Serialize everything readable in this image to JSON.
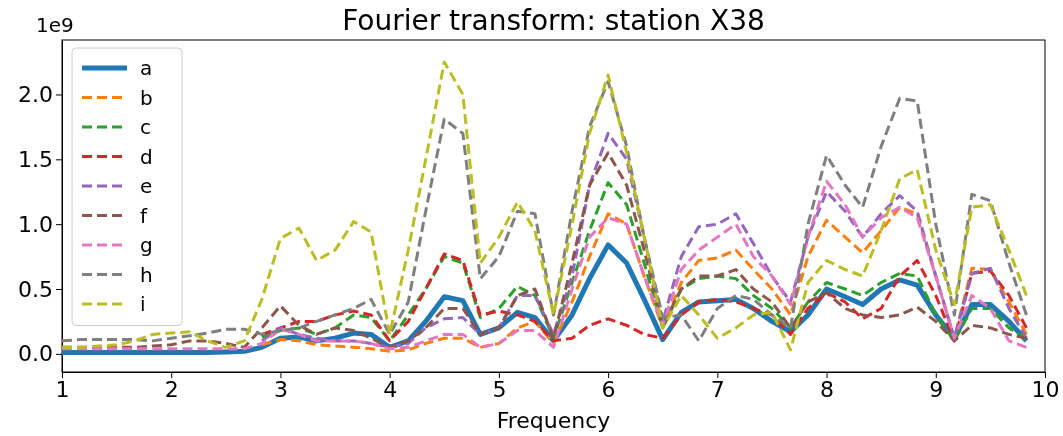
{
  "chart_data": {
    "type": "line",
    "title": "Fourier transform: station X38",
    "xlabel": "Frequency",
    "annotations": [
      "1e9"
    ],
    "x": [
      1,
      1.17,
      1.33,
      1.5,
      1.67,
      1.83,
      2,
      2.17,
      2.33,
      2.5,
      2.67,
      2.83,
      3,
      3.17,
      3.33,
      3.5,
      3.67,
      3.83,
      4,
      4.17,
      4.33,
      4.5,
      4.67,
      4.83,
      5,
      5.17,
      5.33,
      5.5,
      5.67,
      5.83,
      6,
      6.17,
      6.33,
      6.5,
      6.67,
      6.83,
      7,
      7.17,
      7.33,
      7.5,
      7.67,
      7.83,
      8,
      8.17,
      8.33,
      8.5,
      8.67,
      8.83,
      9,
      9.17,
      9.33,
      9.5,
      9.67,
      9.83
    ],
    "xlim": [
      1,
      10
    ],
    "xticks": [
      1,
      2,
      3,
      4,
      5,
      6,
      7,
      8,
      9,
      10
    ],
    "ylim": [
      -0.14,
      2.42
    ],
    "yticks": [
      {
        "value": 0,
        "label": "0.0"
      },
      {
        "value": 0.5,
        "label": "0.5"
      },
      {
        "value": 1,
        "label": "1.0"
      },
      {
        "value": 1.5,
        "label": "1.5"
      },
      {
        "value": 2,
        "label": "2.0"
      }
    ],
    "grid": false,
    "legend": "top left",
    "marker": "none",
    "series": [
      {
        "name": "a",
        "color": "#1f77b4",
        "line_style": "solid",
        "values": [
          0.01,
          0.01,
          0.01,
          0.01,
          0.01,
          0.01,
          0.01,
          0.01,
          0.01,
          0.015,
          0.02,
          0.05,
          0.12,
          0.13,
          0.1,
          0.12,
          0.16,
          0.15,
          0.05,
          0.1,
          0.25,
          0.44,
          0.41,
          0.15,
          0.2,
          0.32,
          0.28,
          0.1,
          0.3,
          0.58,
          0.84,
          0.7,
          0.42,
          0.11,
          0.32,
          0.4,
          0.41,
          0.42,
          0.35,
          0.25,
          0.17,
          0.3,
          0.5,
          0.44,
          0.38,
          0.5,
          0.57,
          0.53,
          0.3,
          0.12,
          0.38,
          0.38,
          0.25,
          0.1
        ]
      },
      {
        "name": "b",
        "color": "#ff7f0e",
        "line_style": "dashed",
        "values": [
          null,
          null,
          null,
          null,
          null,
          null,
          null,
          null,
          null,
          null,
          null,
          0.07,
          0.11,
          0.1,
          0.07,
          0.06,
          0.05,
          0.04,
          0.02,
          0.03,
          0.08,
          0.12,
          0.12,
          0.05,
          0.08,
          0.2,
          0.25,
          0.08,
          0.4,
          0.75,
          1.08,
          1.0,
          0.6,
          0.2,
          0.55,
          0.72,
          0.74,
          0.8,
          0.65,
          0.5,
          0.3,
          0.75,
          1.03,
          0.9,
          0.78,
          0.95,
          1.13,
          1.08,
          0.6,
          0.12,
          0.66,
          0.65,
          0.4,
          0.15
        ]
      },
      {
        "name": "c",
        "color": "#2ca02c",
        "line_style": "dashed",
        "values": [
          null,
          null,
          null,
          null,
          null,
          null,
          null,
          null,
          null,
          null,
          null,
          0.13,
          0.18,
          0.2,
          0.15,
          0.2,
          0.3,
          0.28,
          0.1,
          0.3,
          0.5,
          0.75,
          0.7,
          0.28,
          0.35,
          0.52,
          0.45,
          0.12,
          0.55,
          0.95,
          1.32,
          1.15,
          0.7,
          0.2,
          0.5,
          0.58,
          0.6,
          0.58,
          0.45,
          0.35,
          0.2,
          0.4,
          0.55,
          0.5,
          0.45,
          0.55,
          0.62,
          0.6,
          0.3,
          0.1,
          0.35,
          0.35,
          0.2,
          0.12
        ]
      },
      {
        "name": "d",
        "color": "#d62728",
        "line_style": "dashed",
        "values": [
          null,
          null,
          null,
          null,
          null,
          null,
          null,
          null,
          null,
          null,
          null,
          0.15,
          0.2,
          0.25,
          0.25,
          0.3,
          0.33,
          0.3,
          0.1,
          0.25,
          0.5,
          0.77,
          0.72,
          0.3,
          0.33,
          0.3,
          0.25,
          0.1,
          0.12,
          0.22,
          0.27,
          0.22,
          0.15,
          0.12,
          0.3,
          0.4,
          0.42,
          0.4,
          0.35,
          0.3,
          0.15,
          0.35,
          0.47,
          0.4,
          0.27,
          0.35,
          0.6,
          0.72,
          0.45,
          0.1,
          0.62,
          0.64,
          0.45,
          0.2
        ]
      },
      {
        "name": "e",
        "color": "#9467bd",
        "line_style": "dashed",
        "values": [
          null,
          null,
          null,
          null,
          null,
          null,
          null,
          null,
          null,
          null,
          null,
          0.1,
          0.2,
          0.15,
          0.12,
          0.1,
          0.1,
          0.08,
          0.05,
          0.08,
          0.2,
          0.27,
          0.28,
          0.15,
          0.2,
          0.45,
          0.45,
          0.15,
          0.6,
          1.3,
          1.7,
          1.5,
          0.9,
          0.25,
          0.75,
          0.98,
          1.0,
          1.08,
          0.85,
          0.6,
          0.4,
          0.9,
          1.25,
          1.1,
          0.9,
          1.08,
          1.22,
          1.1,
          0.6,
          0.12,
          0.62,
          0.66,
          0.35,
          0.12
        ]
      },
      {
        "name": "f",
        "color": "#8c564b",
        "line_style": "dashed",
        "values": [
          0.05,
          0.05,
          0.05,
          0.05,
          0.05,
          0.06,
          0.07,
          0.1,
          0.1,
          0.08,
          0.05,
          0.2,
          0.37,
          0.22,
          0.15,
          0.2,
          0.18,
          0.12,
          0.05,
          0.1,
          0.2,
          0.35,
          0.35,
          0.15,
          0.2,
          0.45,
          0.5,
          0.12,
          0.7,
          1.3,
          1.55,
          1.3,
          0.8,
          0.22,
          0.5,
          0.6,
          0.6,
          0.65,
          0.5,
          0.4,
          0.2,
          0.4,
          0.47,
          0.35,
          0.3,
          0.28,
          0.3,
          0.36,
          0.25,
          0.1,
          0.22,
          0.2,
          0.15,
          0.12
        ]
      },
      {
        "name": "g",
        "color": "#e377c2",
        "line_style": "dashed",
        "values": [
          0.04,
          0.04,
          0.04,
          0.04,
          0.04,
          0.04,
          0.04,
          0.04,
          0.04,
          0.04,
          0.04,
          0.08,
          0.19,
          0.15,
          0.1,
          0.1,
          0.1,
          0.08,
          0.04,
          0.05,
          0.1,
          0.15,
          0.15,
          0.05,
          0.08,
          0.18,
          0.18,
          0.05,
          0.5,
          0.9,
          1.05,
          1.0,
          0.6,
          0.22,
          0.65,
          0.8,
          0.9,
          1.0,
          0.75,
          0.6,
          0.38,
          0.9,
          1.33,
          1.15,
          0.9,
          1.05,
          1.13,
          1.05,
          0.6,
          0.12,
          0.45,
          0.35,
          0.1,
          0.05
        ]
      },
      {
        "name": "h",
        "color": "#7f7f7f",
        "line_style": "dashed",
        "values": [
          0.1,
          0.11,
          0.11,
          0.11,
          0.11,
          0.1,
          0.12,
          0.14,
          0.16,
          0.19,
          0.19,
          0.15,
          0.18,
          0.2,
          0.25,
          0.3,
          0.35,
          0.42,
          0.15,
          0.4,
          1.1,
          1.81,
          1.7,
          0.58,
          0.75,
          1.1,
          1.08,
          0.3,
          1.1,
          1.75,
          2.1,
          1.6,
          0.9,
          0.28,
          0.3,
          0.1,
          0.35,
          0.45,
          0.42,
          0.3,
          0.2,
          1.0,
          1.53,
          1.3,
          1.13,
          1.6,
          1.97,
          1.95,
          1.0,
          0.3,
          1.23,
          1.18,
          0.7,
          0.3
        ]
      },
      {
        "name": "i",
        "color": "#bcbd22",
        "line_style": "dashed",
        "values": [
          0.05,
          0.05,
          0.06,
          0.07,
          0.1,
          0.15,
          0.16,
          0.17,
          0.1,
          0.05,
          0.1,
          0.42,
          0.89,
          0.97,
          0.72,
          0.8,
          1.02,
          0.94,
          0.15,
          0.8,
          1.5,
          2.25,
          2.0,
          0.7,
          0.9,
          1.17,
          0.95,
          0.3,
          1.0,
          1.7,
          2.15,
          1.55,
          0.9,
          0.2,
          0.45,
          0.3,
          0.12,
          0.2,
          0.3,
          0.32,
          0.03,
          0.55,
          0.72,
          0.65,
          0.6,
          0.95,
          1.35,
          1.42,
          0.8,
          0.38,
          1.13,
          1.15,
          0.8,
          0.45
        ]
      }
    ]
  }
}
